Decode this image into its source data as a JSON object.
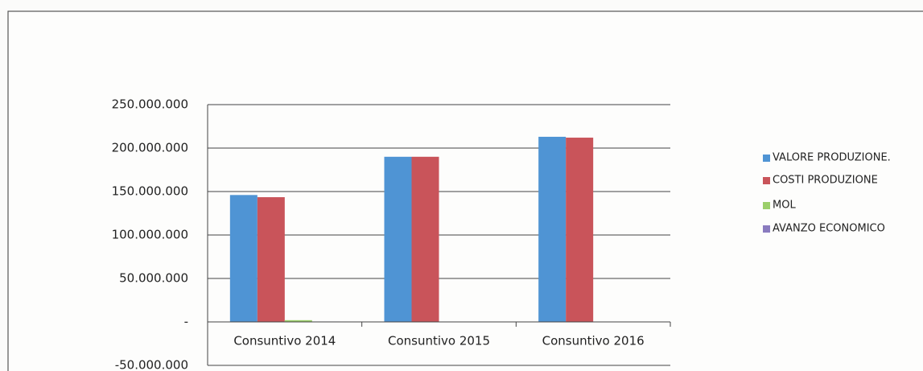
{
  "chart_data": {
    "type": "bar",
    "categories": [
      "Consuntivo 2014",
      "Consuntivo 2015",
      "Consuntivo 2016"
    ],
    "series": [
      {
        "name": "VALORE  PRODUZIONE.",
        "color": "#4f94d4",
        "values": [
          146000000,
          190000000,
          213000000
        ]
      },
      {
        "name": "COSTI PRODUZIONE",
        "color": "#c9545a",
        "values": [
          143500000,
          190000000,
          212000000
        ]
      },
      {
        "name": "MOL",
        "color": "#9bcf6a",
        "values": [
          2000000,
          0,
          0
        ]
      },
      {
        "name": "AVANZO ECONOMICO",
        "color": "#8a7bbf",
        "values": [
          500000,
          0,
          0
        ]
      }
    ],
    "ylim": [
      -50000000,
      250000000
    ],
    "yticks": [
      {
        "value": -50000000,
        "label": "-50.000.000"
      },
      {
        "value": 0,
        "label": "-"
      },
      {
        "value": 50000000,
        "label": "50.000.000"
      },
      {
        "value": 100000000,
        "label": "100.000.000"
      },
      {
        "value": 150000000,
        "label": "150.000.000"
      },
      {
        "value": 200000000,
        "label": "200.000.000"
      },
      {
        "value": 250000000,
        "label": "250.000.000"
      }
    ],
    "grid": true,
    "legend": "right"
  }
}
